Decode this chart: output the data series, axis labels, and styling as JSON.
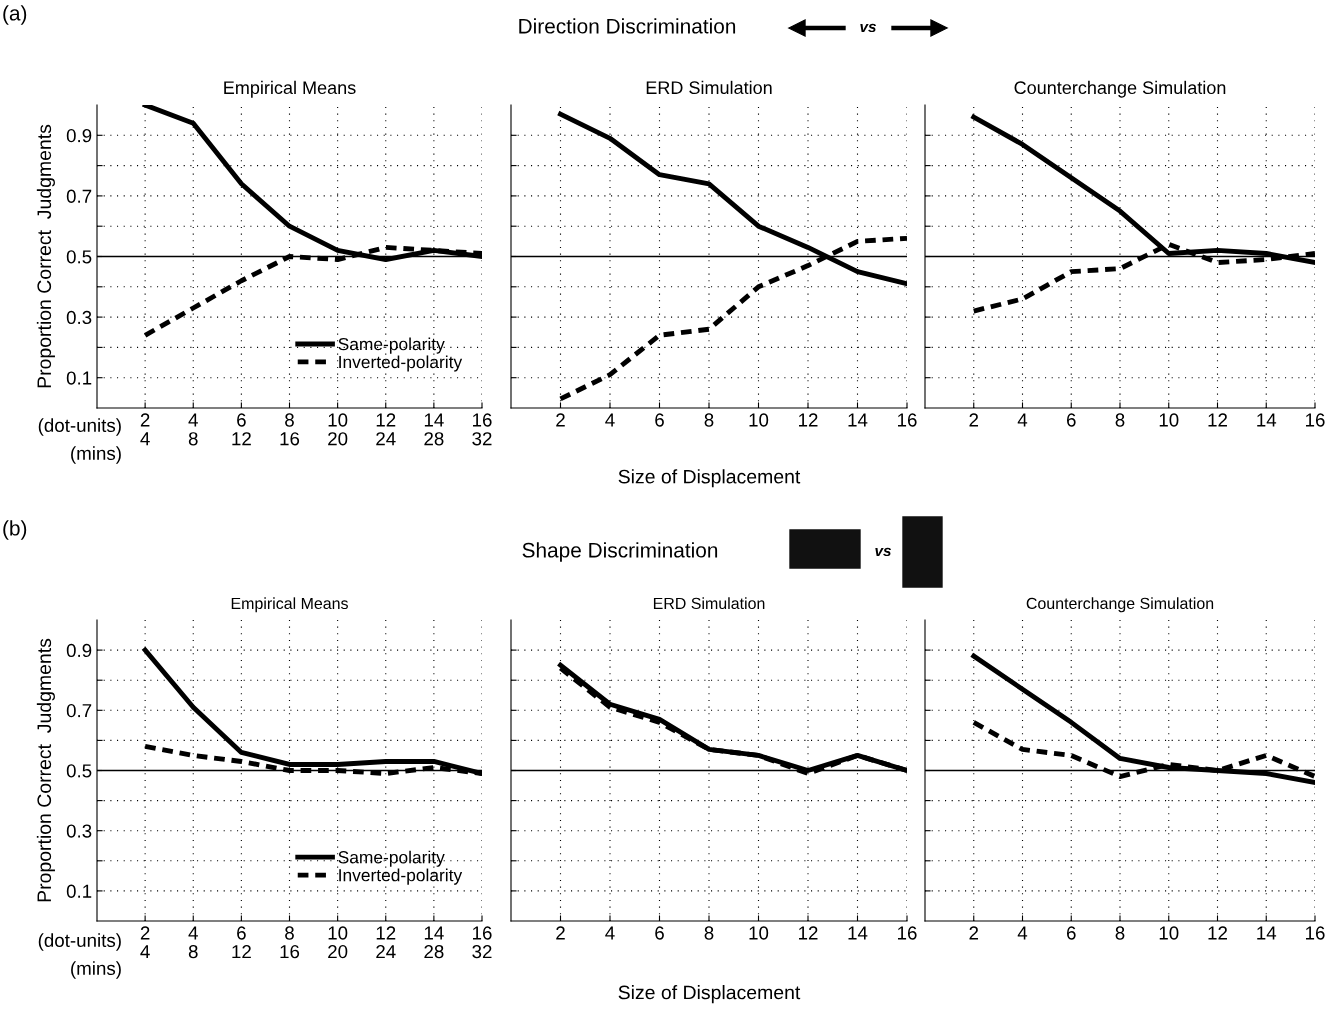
{
  "chart_data": [
    {
      "type": "line",
      "title": "Empirical Means",
      "ylabel": "Proportion Correct  Judgments",
      "x": [
        2,
        4,
        6,
        8,
        10,
        12,
        14,
        16
      ],
      "xlim": [
        0,
        16
      ],
      "ylim": [
        0,
        1.0
      ],
      "xticks": [
        2,
        4,
        6,
        8,
        10,
        12,
        14,
        16
      ],
      "x2lim": [
        0,
        32
      ],
      "x2ticks": [
        4,
        8,
        12,
        16,
        20,
        24,
        28,
        32
      ],
      "yticks": [
        0.1,
        {
          "value": 0.2,
          "label": null
        },
        0.3,
        {
          "value": 0.4,
          "label": null
        },
        0.5,
        {
          "value": 0.6,
          "label": null
        },
        0.7,
        {
          "value": 0.8,
          "label": null
        },
        0.9
      ],
      "series": [
        {
          "name": "Same-polarity",
          "color": "#000000",
          "line_style": "solid",
          "values": [
            1.0,
            0.94,
            0.74,
            0.6,
            0.52,
            0.49,
            0.52,
            0.5
          ]
        },
        {
          "name": "Inverted-polarity",
          "color": "#000000",
          "line_style": "dashed",
          "values": [
            0.24,
            0.33,
            0.42,
            0.5,
            0.49,
            0.53,
            0.52,
            0.51
          ]
        }
      ],
      "ref_lines": [
        {
          "axis": "y",
          "value": 0.5,
          "color": "#000000"
        }
      ],
      "grid": true,
      "legend": "bottom right",
      "annotations": [
        "(a)",
        "Direction Discrimination",
        "vs",
        "(dot-units)",
        "(mins)"
      ]
    },
    {
      "type": "line",
      "title": "ERD Simulation",
      "xlabel": "Size of Displacement",
      "x": [
        2,
        4,
        6,
        8,
        10,
        12,
        14,
        16
      ],
      "xlim": [
        0,
        16
      ],
      "ylim": [
        0,
        1.0
      ],
      "xticks": [
        2,
        4,
        6,
        8,
        10,
        12,
        14,
        16
      ],
      "yticks": [
        {
          "value": 0.1,
          "label": null
        },
        {
          "value": 0.2,
          "label": null
        },
        {
          "value": 0.3,
          "label": null
        },
        {
          "value": 0.4,
          "label": null
        },
        {
          "value": 0.5,
          "label": null
        },
        {
          "value": 0.6,
          "label": null
        },
        {
          "value": 0.7,
          "label": null
        },
        {
          "value": 0.8,
          "label": null
        },
        {
          "value": 0.9,
          "label": null
        }
      ],
      "series": [
        {
          "color": "#000000",
          "line_style": "solid",
          "values": [
            0.97,
            0.89,
            0.77,
            0.74,
            0.6,
            0.53,
            0.45,
            0.41
          ]
        },
        {
          "color": "#000000",
          "line_style": "dashed",
          "values": [
            0.03,
            0.11,
            0.24,
            0.26,
            0.4,
            0.47,
            0.55,
            0.56
          ]
        }
      ],
      "ref_lines": [
        {
          "axis": "y",
          "value": 0.5,
          "color": "#000000"
        }
      ],
      "grid": true,
      "tick_labels": "x"
    },
    {
      "type": "line",
      "title": "Counterchange Simulation",
      "x": [
        2,
        4,
        6,
        8,
        10,
        12,
        14,
        16
      ],
      "xlim": [
        0,
        16
      ],
      "ylim": [
        0,
        1.0
      ],
      "xticks": [
        2,
        4,
        6,
        8,
        10,
        12,
        14,
        16
      ],
      "yticks": [
        {
          "value": 0.1,
          "label": null
        },
        {
          "value": 0.2,
          "label": null
        },
        {
          "value": 0.3,
          "label": null
        },
        {
          "value": 0.4,
          "label": null
        },
        {
          "value": 0.5,
          "label": null
        },
        {
          "value": 0.6,
          "label": null
        },
        {
          "value": 0.7,
          "label": null
        },
        {
          "value": 0.8,
          "label": null
        },
        {
          "value": 0.9,
          "label": null
        }
      ],
      "series": [
        {
          "color": "#000000",
          "line_style": "solid",
          "values": [
            0.96,
            0.87,
            0.76,
            0.65,
            0.51,
            0.52,
            0.51,
            0.48
          ]
        },
        {
          "color": "#000000",
          "line_style": "dashed",
          "values": [
            0.32,
            0.36,
            0.45,
            0.46,
            0.54,
            0.48,
            0.49,
            0.51
          ]
        }
      ],
      "ref_lines": [
        {
          "axis": "y",
          "value": 0.5,
          "color": "#000000"
        }
      ],
      "grid": true,
      "tick_labels": "x"
    },
    {
      "type": "line",
      "title": "Empirical Means",
      "ylabel": "Proportion Correct  Judgments",
      "x": [
        2,
        4,
        6,
        8,
        10,
        12,
        14,
        16
      ],
      "xlim": [
        0,
        16
      ],
      "ylim": [
        0,
        1.0
      ],
      "xticks": [
        2,
        4,
        6,
        8,
        10,
        12,
        14,
        16
      ],
      "x2lim": [
        0,
        32
      ],
      "x2ticks": [
        4,
        8,
        12,
        16,
        20,
        24,
        28,
        32
      ],
      "yticks": [
        0.1,
        {
          "value": 0.2,
          "label": null
        },
        0.3,
        {
          "value": 0.4,
          "label": null
        },
        0.5,
        {
          "value": 0.6,
          "label": null
        },
        0.7,
        {
          "value": 0.8,
          "label": null
        },
        0.9
      ],
      "series": [
        {
          "name": "Same-polarity",
          "color": "#000000",
          "line_style": "solid",
          "values": [
            0.9,
            0.71,
            0.56,
            0.52,
            0.52,
            0.53,
            0.53,
            0.49
          ]
        },
        {
          "name": "Inverted-polarity",
          "color": "#000000",
          "line_style": "dashed",
          "values": [
            0.58,
            0.55,
            0.53,
            0.5,
            0.5,
            0.49,
            0.51,
            0.49
          ]
        }
      ],
      "ref_lines": [
        {
          "axis": "y",
          "value": 0.5,
          "color": "#000000"
        }
      ],
      "grid": true,
      "legend": "bottom right",
      "annotations": [
        "(b)",
        "Shape Discrimination",
        "vs",
        "(dot-units)",
        "(mins)"
      ]
    },
    {
      "type": "line",
      "title": "ERD Simulation",
      "xlabel": "Size of Displacement",
      "x": [
        2,
        4,
        6,
        8,
        10,
        12,
        14,
        16
      ],
      "xlim": [
        0,
        16
      ],
      "ylim": [
        0,
        1.0
      ],
      "xticks": [
        2,
        4,
        6,
        8,
        10,
        12,
        14,
        16
      ],
      "yticks": [
        {
          "value": 0.1,
          "label": null
        },
        {
          "value": 0.2,
          "label": null
        },
        {
          "value": 0.3,
          "label": null
        },
        {
          "value": 0.4,
          "label": null
        },
        {
          "value": 0.5,
          "label": null
        },
        {
          "value": 0.6,
          "label": null
        },
        {
          "value": 0.7,
          "label": null
        },
        {
          "value": 0.8,
          "label": null
        },
        {
          "value": 0.9,
          "label": null
        }
      ],
      "series": [
        {
          "color": "#000000",
          "line_style": "solid",
          "values": [
            0.85,
            0.72,
            0.67,
            0.57,
            0.55,
            0.5,
            0.55,
            0.5
          ]
        },
        {
          "color": "#000000",
          "line_style": "dashed",
          "values": [
            0.84,
            0.71,
            0.66,
            0.57,
            0.55,
            0.49,
            0.55,
            0.5
          ]
        }
      ],
      "ref_lines": [
        {
          "axis": "y",
          "value": 0.5,
          "color": "#000000"
        }
      ],
      "grid": true,
      "tick_labels": "x"
    },
    {
      "type": "line",
      "title": "Counterchange Simulation",
      "x": [
        2,
        4,
        6,
        8,
        10,
        12,
        14,
        16
      ],
      "xlim": [
        0,
        16
      ],
      "ylim": [
        0,
        1.0
      ],
      "xticks": [
        2,
        4,
        6,
        8,
        10,
        12,
        14,
        16
      ],
      "yticks": [
        {
          "value": 0.1,
          "label": null
        },
        {
          "value": 0.2,
          "label": null
        },
        {
          "value": 0.3,
          "label": null
        },
        {
          "value": 0.4,
          "label": null
        },
        {
          "value": 0.5,
          "label": null
        },
        {
          "value": 0.6,
          "label": null
        },
        {
          "value": 0.7,
          "label": null
        },
        {
          "value": 0.8,
          "label": null
        },
        {
          "value": 0.9,
          "label": null
        }
      ],
      "series": [
        {
          "color": "#000000",
          "line_style": "solid",
          "values": [
            0.88,
            0.77,
            0.66,
            0.54,
            0.51,
            0.5,
            0.49,
            0.46
          ]
        },
        {
          "color": "#000000",
          "line_style": "dashed",
          "values": [
            0.66,
            0.57,
            0.55,
            0.48,
            0.52,
            0.5,
            0.55,
            0.48
          ]
        }
      ],
      "ref_lines": [
        {
          "axis": "y",
          "value": 0.5,
          "color": "#000000"
        }
      ],
      "grid": true,
      "tick_labels": "x"
    }
  ]
}
